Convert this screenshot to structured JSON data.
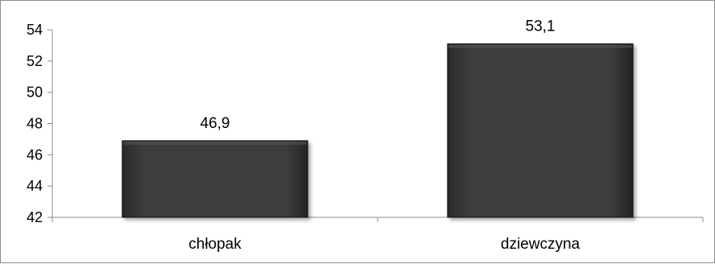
{
  "chart_data": {
    "type": "bar",
    "categories": [
      "chłopak",
      "dziewczyna"
    ],
    "values": [
      46.9,
      53.1
    ],
    "data_labels": [
      "46,9",
      "53,1"
    ],
    "y_ticks": [
      42,
      44,
      46,
      48,
      50,
      52,
      54
    ],
    "ylim": [
      42,
      54
    ],
    "title": "",
    "xlabel": "",
    "ylabel": "",
    "grid": false,
    "legend": "none",
    "bar_color": "#3a3a3a",
    "bar_edge_color": "#111111"
  }
}
